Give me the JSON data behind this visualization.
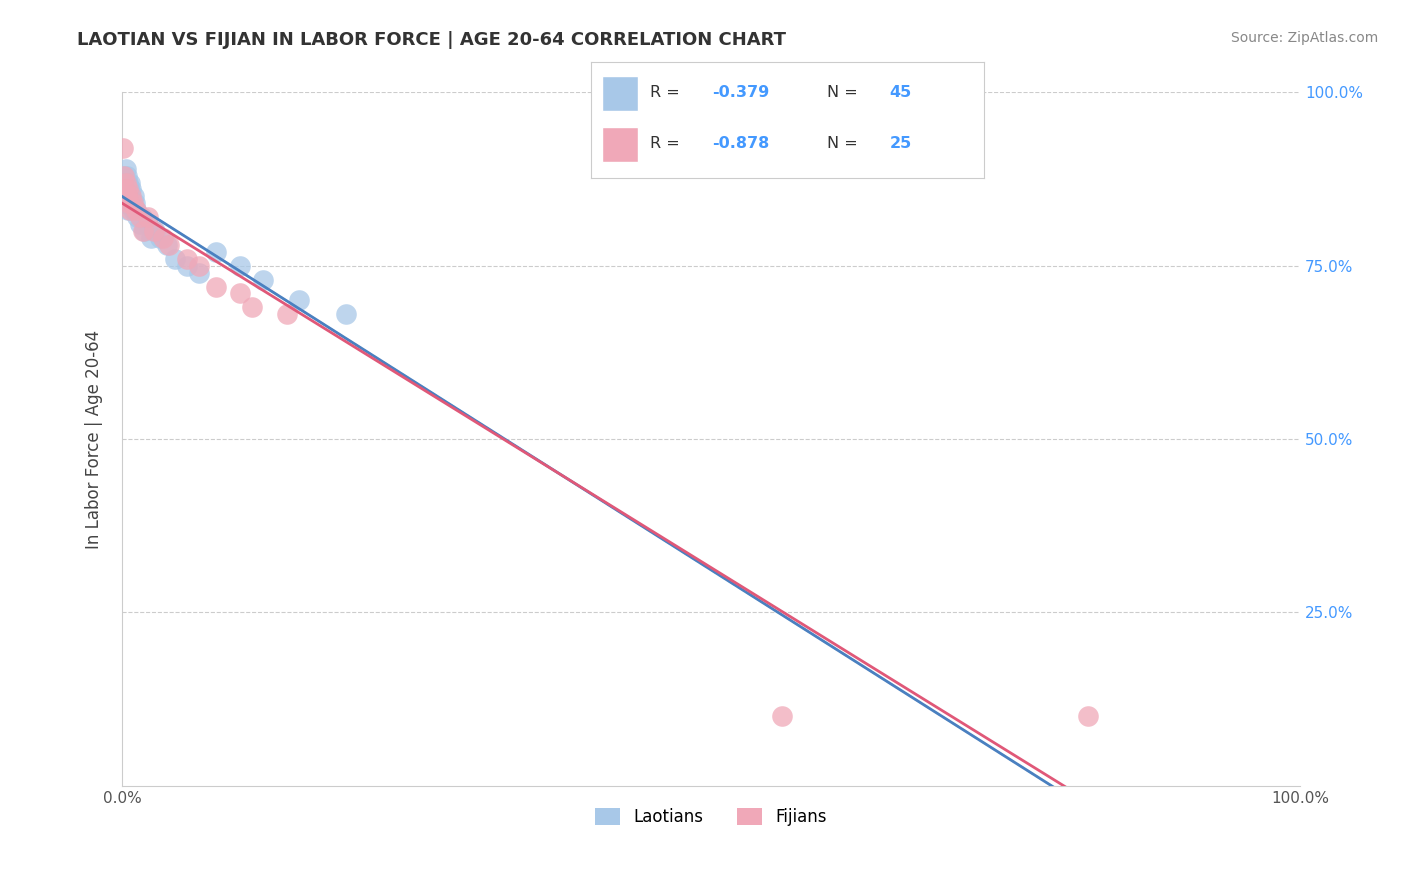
{
  "title": "LAOTIAN VS FIJIAN IN LABOR FORCE | AGE 20-64 CORRELATION CHART",
  "ylabel": "In Labor Force | Age 20-64",
  "source": "Source: ZipAtlas.com",
  "legend_label1": "Laotians",
  "legend_label2": "Fijians",
  "R_laotian": -0.379,
  "N_laotian": 45,
  "R_fijian": -0.878,
  "N_fijian": 25,
  "laotian_color": "#a8c8e8",
  "fijian_color": "#f0a8b8",
  "laotian_line_color": "#4a80c0",
  "fijian_line_color": "#e05878",
  "dashed_line_color": "#aaaaaa",
  "background_color": "#ffffff",
  "grid_color": "#cccccc",
  "title_color": "#333333",
  "source_color": "#888888",
  "right_tick_color": "#4499ff",
  "laotian_x": [
    0.001,
    0.001,
    0.001,
    0.002,
    0.002,
    0.002,
    0.002,
    0.003,
    0.003,
    0.003,
    0.003,
    0.004,
    0.004,
    0.004,
    0.005,
    0.005,
    0.005,
    0.006,
    0.006,
    0.007,
    0.007,
    0.008,
    0.008,
    0.009,
    0.01,
    0.01,
    0.011,
    0.012,
    0.013,
    0.015,
    0.017,
    0.019,
    0.022,
    0.025,
    0.028,
    0.032,
    0.038,
    0.045,
    0.055,
    0.065,
    0.08,
    0.1,
    0.12,
    0.15,
    0.19
  ],
  "laotian_y": [
    0.86,
    0.85,
    0.84,
    0.88,
    0.87,
    0.86,
    0.85,
    0.89,
    0.87,
    0.86,
    0.84,
    0.88,
    0.86,
    0.84,
    0.87,
    0.85,
    0.83,
    0.86,
    0.84,
    0.87,
    0.85,
    0.86,
    0.84,
    0.83,
    0.85,
    0.83,
    0.84,
    0.83,
    0.82,
    0.81,
    0.82,
    0.8,
    0.81,
    0.79,
    0.8,
    0.79,
    0.78,
    0.76,
    0.75,
    0.74,
    0.77,
    0.75,
    0.73,
    0.7,
    0.68
  ],
  "fijian_x": [
    0.001,
    0.002,
    0.002,
    0.003,
    0.004,
    0.005,
    0.006,
    0.007,
    0.008,
    0.009,
    0.012,
    0.015,
    0.018,
    0.022,
    0.027,
    0.035,
    0.04,
    0.055,
    0.065,
    0.08,
    0.1,
    0.11,
    0.14,
    0.56,
    0.82
  ],
  "fijian_y": [
    0.92,
    0.88,
    0.86,
    0.87,
    0.85,
    0.86,
    0.84,
    0.83,
    0.85,
    0.84,
    0.83,
    0.82,
    0.8,
    0.82,
    0.8,
    0.79,
    0.78,
    0.76,
    0.75,
    0.72,
    0.71,
    0.69,
    0.68,
    0.1,
    0.1
  ],
  "xlim": [
    0.0,
    1.0
  ],
  "ylim": [
    0.0,
    1.0
  ]
}
